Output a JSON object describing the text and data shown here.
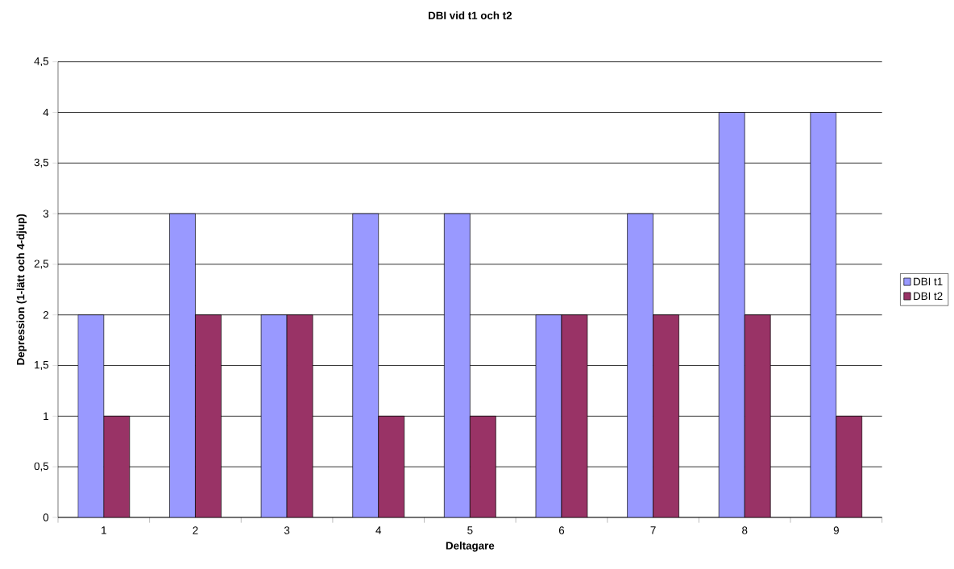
{
  "chart_data": {
    "type": "bar",
    "title": "DBI  vid t1 och t2",
    "xlabel": "Deltagare",
    "ylabel": "Depression (1-lätt och 4-djup)",
    "categories": [
      "1",
      "2",
      "3",
      "4",
      "5",
      "6",
      "7",
      "8",
      "9"
    ],
    "series": [
      {
        "name": "DBI t1",
        "color": "#9999ff",
        "values": [
          2,
          3,
          2,
          3,
          3,
          2,
          3,
          4,
          4
        ]
      },
      {
        "name": "DBI t2",
        "color": "#993366",
        "values": [
          1,
          2,
          2,
          1,
          1,
          2,
          2,
          2,
          1
        ]
      }
    ],
    "ylim": [
      0,
      4.5
    ],
    "yticks": [
      0,
      {
        "value": 0.5,
        "label": "0,5"
      },
      1,
      {
        "value": 1.5,
        "label": "1,5"
      },
      2,
      {
        "value": 2.5,
        "label": "2,5"
      },
      3,
      {
        "value": 3.5,
        "label": "3,5"
      },
      4,
      {
        "value": 4.5,
        "label": "4,5"
      }
    ],
    "grid": "y",
    "legend": "right"
  }
}
